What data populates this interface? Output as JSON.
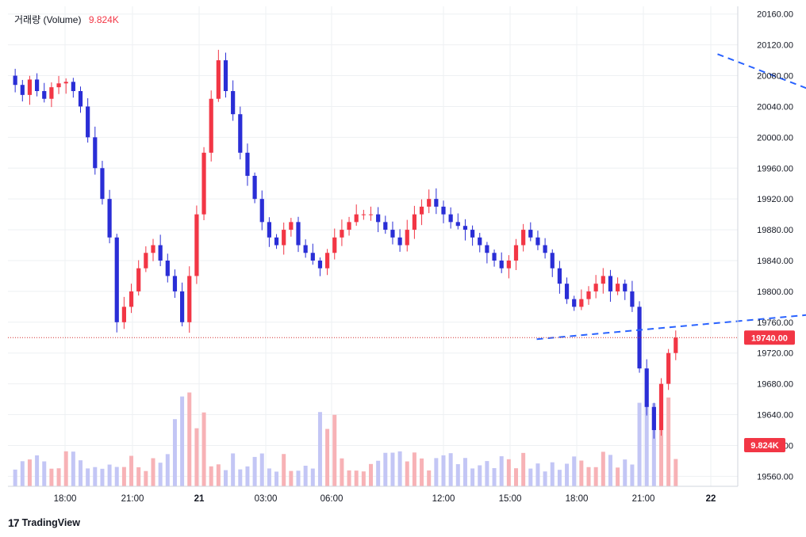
{
  "legend": {
    "label": "거래량 (Volume)",
    "value": "9.824K",
    "value_color": "#f23645"
  },
  "brand": {
    "logo": "17",
    "name": "TradingView"
  },
  "colors": {
    "up": "#f23645",
    "down": "#2a2ed6",
    "vol_up": "#f7b2b6",
    "vol_down": "#c3c6f5",
    "trendline": "#2962ff",
    "grid": "#eef0f3",
    "price_line": "#d32f2f"
  },
  "chart_data": {
    "type": "candlestick",
    "title": "",
    "price_axis": {
      "ticks": [
        "20160.00",
        "20120.00",
        "20080.00",
        "20040.00",
        "20000.00",
        "19960.00",
        "19920.00",
        "19880.00",
        "19840.00",
        "19800.00",
        "19760.00",
        "19720.00",
        "19680.00",
        "19640.00",
        "19600.00",
        "19560.00"
      ],
      "range": [
        19547,
        20170
      ]
    },
    "time_axis": {
      "ticks": [
        "18:00",
        "21:00",
        "21",
        "03:00",
        "06:00",
        "12:00",
        "15:00",
        "18:00",
        "21:00",
        "22"
      ],
      "bold": [
        "21",
        "22"
      ]
    },
    "last_price": {
      "value": 19740.0,
      "label": "19740.00"
    },
    "volume_tag": {
      "label": "9.824K"
    },
    "trendlines": [
      {
        "style": "dashed",
        "from": {
          "t": 20.8,
          "p": 20108
        },
        "to": {
          "t": 39.4,
          "p": 19849
        }
      },
      {
        "style": "dashed",
        "from": {
          "t": 15.5,
          "p": 19738
        },
        "to": {
          "t": 39.0,
          "p": 19818
        }
      }
    ],
    "series_price": [
      20080,
      20068,
      20055,
      20075,
      20060,
      20050,
      20065,
      20070,
      20072,
      20060,
      20040,
      20000,
      19960,
      19920,
      19870,
      19760,
      19780,
      19800,
      19830,
      19850,
      19860,
      19840,
      19820,
      19800,
      19760,
      19820,
      19900,
      19980,
      20050,
      20100,
      20060,
      20030,
      19980,
      19950,
      19920,
      19890,
      19870,
      19860,
      19880,
      19890,
      19860,
      19850,
      19840,
      19830,
      19850,
      19870,
      19880,
      19890,
      19900,
      19900,
      19900,
      19890,
      19880,
      19870,
      19860,
      19880,
      19900,
      19910,
      19920,
      19910,
      19900,
      19890,
      19885,
      19880,
      19870,
      19860,
      19850,
      19840,
      19830,
      19840,
      19860,
      19880,
      19870,
      19860,
      19850,
      19830,
      19810,
      19790,
      19780,
      19790,
      19800,
      19810,
      19820,
      19800,
      19810,
      19800,
      19780,
      19700,
      19650,
      19620,
      19680,
      19720,
      19740
    ],
    "volume_bars": "minor bars ~ 2K; spikes near 23:00 (~12K), 04:00 (~13K), and 23:00-23:30 next day (~9.8K)"
  }
}
